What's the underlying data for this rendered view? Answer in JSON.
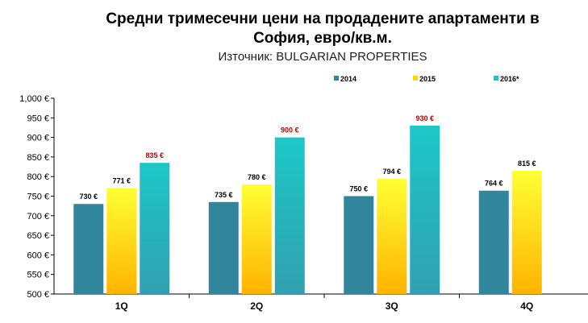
{
  "chart_data": {
    "type": "bar",
    "title_line1": "Средни тримесечни цени на продадените апартаменти в",
    "title_line2": "София, евро/кв.м.",
    "subtitle": "Източник: BULGARIAN PROPERTIES",
    "categories": [
      "1Q",
      "2Q",
      "3Q",
      "4Q"
    ],
    "ylim": [
      500,
      1000
    ],
    "yticks": [
      500,
      550,
      600,
      650,
      700,
      750,
      800,
      850,
      900,
      950,
      1000
    ],
    "ytick_labels": [
      "500 €",
      "550 €",
      "600 €",
      "650 €",
      "700 €",
      "750 €",
      "800 €",
      "850 €",
      "900 €",
      "950 €",
      "1,000 €"
    ],
    "grid": false,
    "legend_position": "top-right",
    "series": [
      {
        "name": "2014",
        "values": [
          730,
          735,
          750,
          764
        ],
        "labels": [
          "730 €",
          "735 €",
          "750 €",
          "764 €"
        ],
        "color": "#31859C"
      },
      {
        "name": "2015",
        "values": [
          771,
          780,
          794,
          815
        ],
        "labels": [
          "771 €",
          "780 €",
          "794 €",
          "815 €"
        ],
        "color": "#FFD700"
      },
      {
        "name": "2016*",
        "values": [
          835,
          900,
          930,
          null
        ],
        "labels": [
          "835 €",
          "900 €",
          "930 €",
          null
        ],
        "color": "#1CC4C4"
      }
    ],
    "highlight_label_color": "#C00000"
  }
}
